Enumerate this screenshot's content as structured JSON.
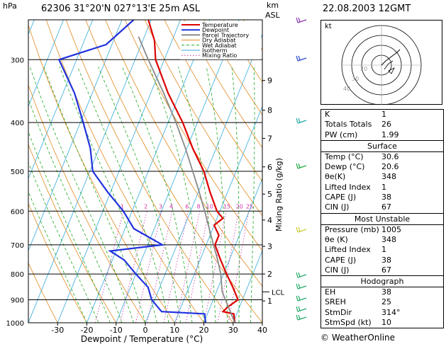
{
  "header": {
    "pressure_unit": "hPa",
    "station": "62306  31°20'N  027°13'E   25m  ASL",
    "km_label": "km",
    "asl_label": "ASL",
    "datetime": "22.08.2003  12GMT"
  },
  "chart_data": {
    "type": "line",
    "title": "62306  31°20'N  027°13'E   25m  ASL",
    "xlabel": "Dewpoint / Temperature (°C)",
    "ylabel": "hPa",
    "mixing_ratio_label": "Mixing Ratio (g/kg)",
    "x_ticks": [
      -30,
      -20,
      -10,
      0,
      10,
      20,
      30,
      40
    ],
    "pressure_levels": [
      300,
      400,
      500,
      600,
      700,
      800,
      900,
      1000
    ],
    "km_ticks": [
      {
        "km": "1",
        "p": 905
      },
      {
        "km": "2",
        "p": 800
      },
      {
        "km": "3",
        "p": 705
      },
      {
        "km": "4",
        "p": 625
      },
      {
        "km": "5",
        "p": 555
      },
      {
        "km": "6",
        "p": 490
      },
      {
        "km": "7",
        "p": 430
      },
      {
        "km": "8",
        "p": 378
      },
      {
        "km": "9",
        "p": 330
      }
    ],
    "lcl_label": "LCL",
    "lcl_p": 868,
    "mixing_ratio_values": [
      "1",
      "2",
      "3",
      "4",
      "6",
      "8",
      "10",
      "15",
      "20",
      "25"
    ],
    "legend": [
      "Temperature",
      "Dewpoint",
      "Parcel Trajectory",
      "Dry Adiabat",
      "Wet Adiabat",
      "Isotherm",
      "Mixing Ratio"
    ],
    "series": [
      {
        "name": "Temperature",
        "color": "#dd0000",
        "points": [
          [
            1000,
            30.6
          ],
          [
            960,
            29
          ],
          [
            950,
            25
          ],
          [
            930,
            26
          ],
          [
            900,
            28.5
          ],
          [
            850,
            25
          ],
          [
            800,
            21
          ],
          [
            750,
            17
          ],
          [
            700,
            13
          ],
          [
            670,
            13
          ],
          [
            640,
            10
          ],
          [
            620,
            12
          ],
          [
            600,
            9
          ],
          [
            550,
            4
          ],
          [
            500,
            -1
          ],
          [
            450,
            -8
          ],
          [
            400,
            -15
          ],
          [
            350,
            -24
          ],
          [
            300,
            -33
          ],
          [
            275,
            -36
          ],
          [
            250,
            -41
          ]
        ]
      },
      {
        "name": "Dewpoint",
        "color": "#2233dd",
        "points": [
          [
            1000,
            20.6
          ],
          [
            960,
            19
          ],
          [
            950,
            4
          ],
          [
            930,
            2
          ],
          [
            900,
            -1
          ],
          [
            850,
            -4
          ],
          [
            800,
            -10
          ],
          [
            750,
            -16
          ],
          [
            720,
            -22
          ],
          [
            700,
            -5
          ],
          [
            650,
            -17
          ],
          [
            600,
            -23
          ],
          [
            550,
            -31
          ],
          [
            500,
            -39
          ],
          [
            450,
            -43
          ],
          [
            400,
            -49
          ],
          [
            350,
            -56
          ],
          [
            300,
            -66
          ],
          [
            280,
            -52
          ],
          [
            250,
            -46
          ]
        ]
      },
      {
        "name": "Parcel Trajectory",
        "color": "#888888",
        "points": [
          [
            1000,
            30.6
          ],
          [
            868,
            22
          ],
          [
            800,
            19
          ],
          [
            750,
            16
          ],
          [
            700,
            12.5
          ],
          [
            650,
            8.8
          ],
          [
            600,
            4.8
          ],
          [
            550,
            0.3
          ],
          [
            500,
            -4.8
          ],
          [
            450,
            -10.5
          ],
          [
            400,
            -17.3
          ],
          [
            350,
            -25.5
          ],
          [
            300,
            -35.5
          ],
          [
            270,
            -42
          ]
        ]
      }
    ],
    "grid": true
  },
  "indices": {
    "rows": [
      {
        "k": "K",
        "v": "1"
      },
      {
        "k": "Totals Totals",
        "v": "26"
      },
      {
        "k": "PW (cm)",
        "v": "1.99"
      }
    ]
  },
  "surface": {
    "title": "Surface",
    "rows": [
      {
        "k": "Temp (°C)",
        "v": "30.6"
      },
      {
        "k": "Dewp (°C)",
        "v": "20.6"
      },
      {
        "k": "θe(K)",
        "v": "348"
      },
      {
        "k": "Lifted Index",
        "v": "1"
      },
      {
        "k": "CAPE (J)",
        "v": "38"
      },
      {
        "k": "CIN (J)",
        "v": "67"
      }
    ]
  },
  "most_unstable": {
    "title": "Most Unstable",
    "rows": [
      {
        "k": "Pressure (mb)",
        "v": "1005"
      },
      {
        "k": "θe (K)",
        "v": "348"
      },
      {
        "k": "Lifted Index",
        "v": "1"
      },
      {
        "k": "CAPE (J)",
        "v": "38"
      },
      {
        "k": "CIN (J)",
        "v": "67"
      }
    ]
  },
  "hodograph_table": {
    "title": "Hodograph",
    "rows": [
      {
        "k": "EH",
        "v": "38"
      },
      {
        "k": "SREH",
        "v": "25"
      },
      {
        "k": "StmDir",
        "v": "314°"
      },
      {
        "k": "StmSpd (kt)",
        "v": "10"
      }
    ]
  },
  "hodograph": {
    "unit": "kt",
    "ring_labels": [
      "20",
      "30",
      "40"
    ]
  },
  "footer": {
    "copyright": "© WeatherOnline"
  },
  "colors": {
    "temperature": "#dd0000",
    "dewpoint": "#2233dd",
    "parcel": "#888888",
    "dry_adiabat": "#e08a1e",
    "wet_adiabat": "#22aa22",
    "isotherm": "#33aadd",
    "mixing_ratio": "#cc33aa"
  }
}
